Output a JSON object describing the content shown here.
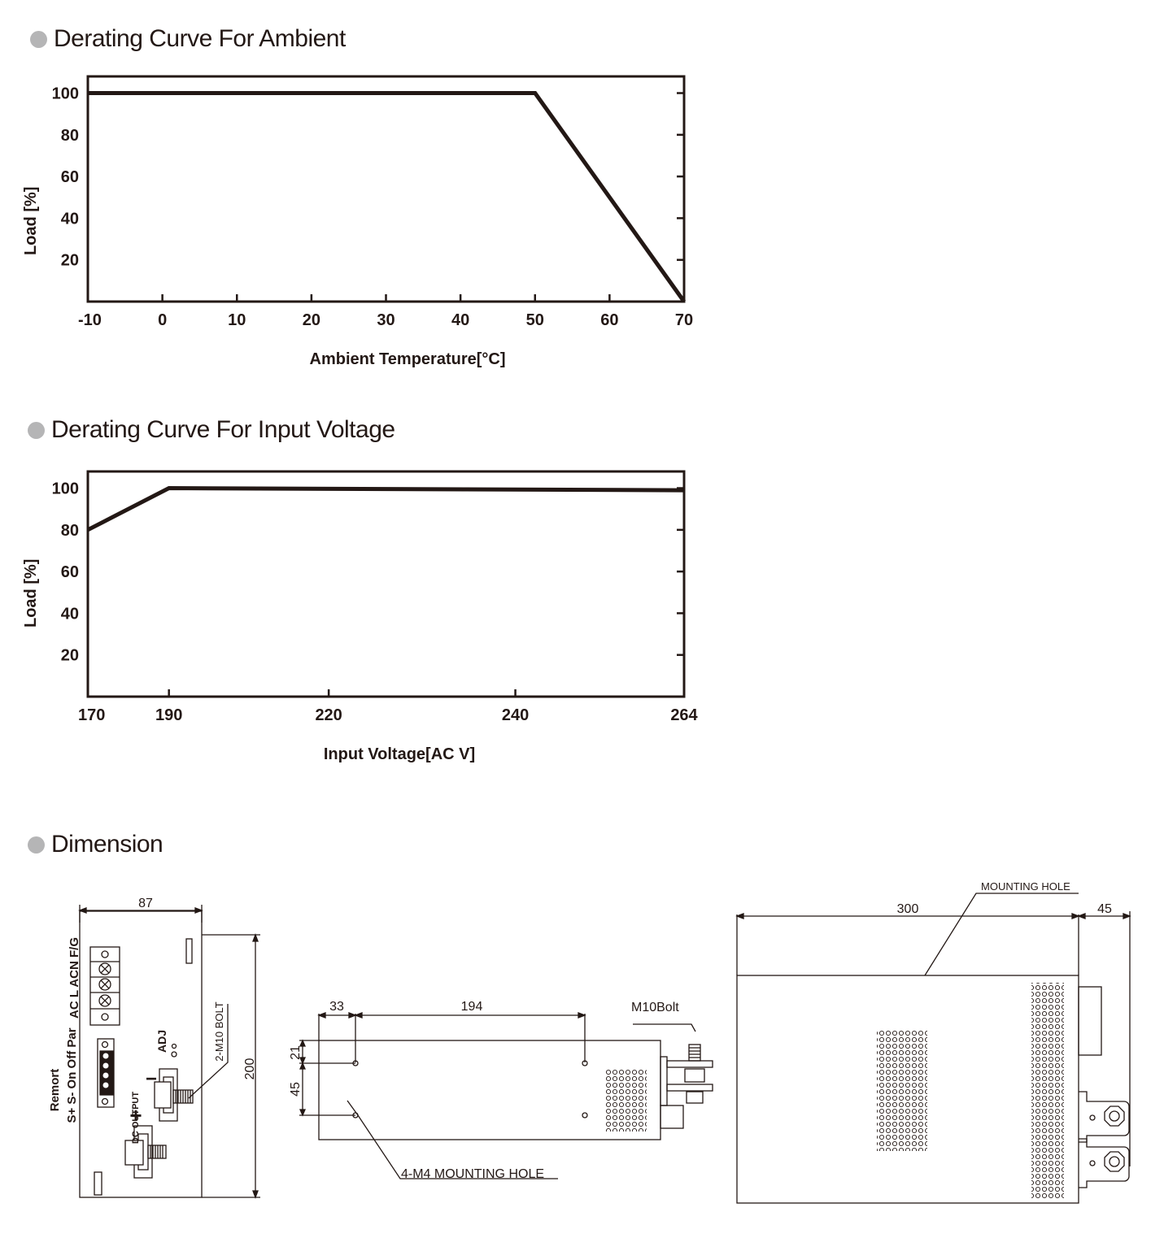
{
  "sections": {
    "ambient_title": "Derating Curve For Ambient",
    "voltage_title": "Derating Curve For Input Voltage",
    "dimension_title": "Dimension"
  },
  "chart_data": [
    {
      "type": "line",
      "title": "Derating Curve For Ambient",
      "xlabel": "Ambient Temperature[°C]",
      "ylabel": "Load [%]",
      "xticks": [
        "-10",
        "0",
        "10",
        "20",
        "30",
        "40",
        "50",
        "60",
        "70"
      ],
      "yticks": [
        "20",
        "40",
        "60",
        "80",
        "100"
      ],
      "xlim": [
        -10,
        70
      ],
      "ylim": [
        0,
        108
      ],
      "grid": false,
      "series": [
        {
          "x": [
            -10,
            50,
            70
          ],
          "y": [
            100,
            100,
            0
          ]
        }
      ]
    },
    {
      "type": "line",
      "title": "Derating Curve For Input Voltage",
      "xlabel": "Input Voltage[AC V]",
      "ylabel": "Load [%]",
      "xticks": [
        "170",
        "190",
        "220",
        "240",
        "264"
      ],
      "yticks": [
        "20",
        "40",
        "60",
        "80",
        "100"
      ],
      "ylim": [
        0,
        108
      ],
      "grid": false,
      "series": [
        {
          "x": [
            170,
            190,
            264
          ],
          "y": [
            80,
            100,
            99
          ]
        }
      ]
    }
  ],
  "dimension": {
    "front": {
      "width": "87",
      "height": "200",
      "ac_label": "AC L ACN F/G",
      "remote_label_1": "Remort",
      "remote_label_2": "S+ S- On Off Par",
      "adj_label": "ADJ",
      "dc_output_label": "DC OUTPUT",
      "plus_label": "+",
      "minus_label": "−",
      "bolt_label": "2-M10 BOLT"
    },
    "side": {
      "dim_a": "33",
      "dim_b": "194",
      "dim_c": "21",
      "dim_d": "45",
      "bolt_label": "M10Bolt",
      "hole_label": "4-M4 MOUNTING HOLE"
    },
    "top": {
      "length": "300",
      "depth": "45",
      "hole_label": "MOUNTING HOLE"
    }
  }
}
